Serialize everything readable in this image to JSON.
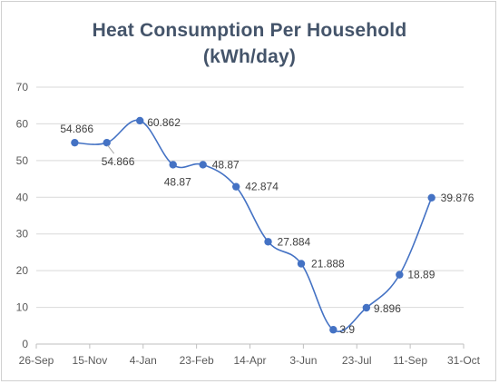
{
  "chart_data": {
    "type": "line",
    "title_line1": "Heat Consumption Per Household",
    "title_line2": "(kWh/day)",
    "xlabel": "",
    "ylabel": "",
    "ylim": [
      0,
      70
    ],
    "y_ticks": [
      0,
      10,
      20,
      30,
      40,
      50,
      60,
      70
    ],
    "x_ticks": [
      "26-Sep",
      "15-Nov",
      "4-Jan",
      "23-Feb",
      "14-Apr",
      "3-Jun",
      "23-Jul",
      "11-Sep",
      "31-Oct"
    ],
    "grid": "horizontal",
    "series_color": "#4472c4",
    "points": [
      {
        "x": "01-Nov",
        "y": 54.866,
        "label": "54.866"
      },
      {
        "x": "01-Dec",
        "y": 54.866,
        "label": "54.866"
      },
      {
        "x": "01-Jan",
        "y": 60.862,
        "label": "60.862"
      },
      {
        "x": "01-Feb",
        "y": 48.87,
        "label": "48.87"
      },
      {
        "x": "01-Mar",
        "y": 48.87,
        "label": "48.87"
      },
      {
        "x": "01-Apr",
        "y": 42.874,
        "label": "42.874"
      },
      {
        "x": "01-May",
        "y": 27.884,
        "label": "27.884"
      },
      {
        "x": "01-Jun",
        "y": 21.888,
        "label": "21.888"
      },
      {
        "x": "01-Jul",
        "y": 3.9,
        "label": "3.9"
      },
      {
        "x": "01-Aug",
        "y": 9.896,
        "label": "9.896"
      },
      {
        "x": "01-Sep",
        "y": 18.89,
        "label": "18.89"
      },
      {
        "x": "01-Oct",
        "y": 39.876,
        "label": "39.876"
      }
    ]
  }
}
